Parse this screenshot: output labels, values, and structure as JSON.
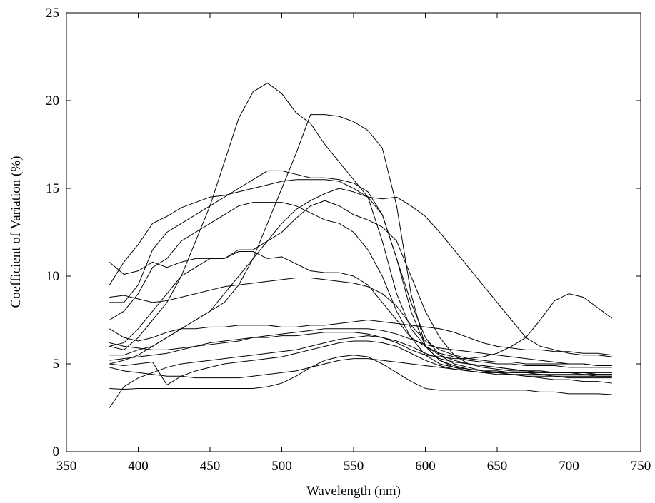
{
  "chart_data": {
    "type": "line",
    "x_label": "Wavelength (nm)",
    "y_label": "Coefficient of Variation (%)",
    "xlim": [
      350,
      750
    ],
    "xticks": [
      350,
      400,
      450,
      500,
      550,
      600,
      650,
      700,
      750
    ],
    "ylim": [
      0,
      25
    ],
    "yticks": [
      0,
      5,
      10,
      15,
      20,
      25
    ],
    "x": [
      380,
      390,
      400,
      410,
      420,
      430,
      440,
      450,
      460,
      470,
      480,
      490,
      500,
      510,
      520,
      530,
      540,
      550,
      560,
      570,
      580,
      590,
      600,
      610,
      620,
      630,
      640,
      650,
      660,
      670,
      680,
      690,
      700,
      710,
      720,
      730
    ],
    "series": [
      {
        "color": "#000000",
        "values": [
          6.0,
          5.8,
          6.5,
          7.5,
          8.5,
          10,
          12,
          14,
          16.5,
          19,
          20.5,
          21,
          20.4,
          19.3,
          18.7,
          17.5,
          16.5,
          15.5,
          14.5,
          12,
          9,
          7,
          6,
          5.5,
          5.2,
          5.0,
          4.9,
          4.8,
          4.7,
          4.6,
          4.6,
          4.5,
          4.5,
          4.5,
          4.4,
          4.4
        ]
      },
      {
        "color": "#000000",
        "values": [
          5.0,
          5.2,
          5.5,
          6,
          6.5,
          7,
          7.5,
          8,
          8.5,
          9.5,
          11,
          13,
          15,
          17,
          19.2,
          19.2,
          19.1,
          18.8,
          18.3,
          17.3,
          14,
          9,
          6,
          5.2,
          4.8,
          4.6,
          4.5,
          4.4,
          4.4,
          4.3,
          4.3,
          4.3,
          4.2,
          4.2,
          4.2,
          4.2
        ]
      },
      {
        "color": "#000000",
        "values": [
          8.5,
          8.5,
          9.5,
          11.5,
          12.5,
          13,
          13.5,
          14,
          14.5,
          15,
          15.5,
          16,
          16,
          15.8,
          15.6,
          15.6,
          15.5,
          15.3,
          14.8,
          13.5,
          11,
          8.5,
          6.5,
          5.5,
          5,
          4.8,
          4.6,
          4.5,
          4.5,
          4.5,
          4.4,
          4.4,
          4.4,
          4.4,
          4.3,
          4.3
        ]
      },
      {
        "color": "#000000",
        "values": [
          9.5,
          10.8,
          11.8,
          13,
          13.4,
          13.9,
          14.2,
          14.5,
          14.6,
          14.8,
          15,
          15.2,
          15.4,
          15.5,
          15.5,
          15.5,
          15.4,
          15,
          14.5,
          14.4,
          14.5,
          14,
          13.4,
          12.5,
          11.5,
          10.5,
          9.5,
          8.5,
          7.5,
          6.5,
          6,
          5.8,
          5.6,
          5.5,
          5.5,
          5.4
        ]
      },
      {
        "color": "#000000",
        "values": [
          6,
          6.2,
          7,
          8,
          9,
          10,
          10.5,
          11,
          11,
          11.5,
          11.5,
          12,
          12.5,
          13.3,
          14,
          14.3,
          14,
          13.5,
          13.2,
          12.8,
          12,
          10,
          8,
          6.5,
          5.5,
          5,
          4.8,
          4.7,
          4.6,
          4.6,
          4.5,
          4.5,
          4.5,
          4.5,
          4.5,
          4.5
        ]
      },
      {
        "color": "#000000",
        "values": [
          7.5,
          8,
          9,
          10.5,
          11,
          12,
          12.5,
          13,
          13.5,
          14,
          14.2,
          14.2,
          14.2,
          14,
          13.6,
          13.2,
          13,
          12.5,
          11.5,
          10,
          8,
          6.5,
          5.5,
          5.0,
          4.8,
          4.7,
          4.6,
          4.6,
          4.5,
          4.5,
          4.5,
          4.5,
          4.5,
          4.5,
          4.5,
          4.5
        ]
      },
      {
        "color": "#000000",
        "values": [
          5.5,
          5.5,
          5.8,
          6,
          6.5,
          7,
          7.5,
          8,
          9,
          10,
          11,
          12,
          13,
          13.8,
          14.3,
          14.7,
          15,
          14.8,
          14.5,
          13.5,
          11,
          8,
          6,
          5.2,
          4.9,
          4.7,
          4.6,
          4.6,
          4.5,
          4.5,
          4.5,
          4.5,
          4.5,
          4.4,
          4.4,
          4.4
        ]
      },
      {
        "color": "#000000",
        "values": [
          5.2,
          5.3,
          5.4,
          5.5,
          5.6,
          5.8,
          6,
          6.2,
          6.3,
          6.4,
          6.5,
          6.5,
          6.6,
          6.6,
          6.7,
          6.8,
          6.8,
          6.8,
          6.7,
          6.5,
          6.2,
          5.8,
          5.5,
          5.4,
          5.3,
          5.3,
          5.4,
          5.6,
          6,
          6.5,
          7.5,
          8.6,
          9.0,
          8.8,
          8.2,
          7.6
        ]
      },
      {
        "color": "#000000",
        "values": [
          10.8,
          10.1,
          10.3,
          10.8,
          10.5,
          10.8,
          11,
          11,
          11,
          11.4,
          11.4,
          11,
          11.1,
          10.7,
          10.3,
          10.2,
          10.2,
          10,
          9.5,
          8.5,
          7.5,
          6.5,
          6,
          5.6,
          5.4,
          5.2,
          5.1,
          5.0,
          5.0,
          4.9,
          4.9,
          4.9,
          4.8,
          4.8,
          4.8,
          4.8
        ]
      },
      {
        "color": "#000000",
        "values": [
          8.8,
          8.9,
          8.7,
          8.5,
          8.6,
          8.8,
          9,
          9.2,
          9.4,
          9.5,
          9.6,
          9.7,
          9.8,
          9.9,
          9.9,
          9.8,
          9.7,
          9.6,
          9.4,
          9,
          8.3,
          7.2,
          6.3,
          5.8,
          5.5,
          5.3,
          5.2,
          5.1,
          5.1,
          5.0,
          5.0,
          5.0,
          5.0,
          5.0,
          4.9,
          4.9
        ]
      },
      {
        "color": "#000000",
        "values": [
          3.6,
          3.55,
          3.6,
          3.6,
          3.6,
          3.6,
          3.6,
          3.6,
          3.6,
          3.6,
          3.6,
          3.7,
          3.9,
          4.3,
          4.8,
          5.2,
          5.4,
          5.5,
          5.4,
          5.0,
          4.5,
          4.0,
          3.6,
          3.5,
          3.5,
          3.5,
          3.5,
          3.5,
          3.5,
          3.5,
          3.4,
          3.4,
          3.3,
          3.3,
          3.3,
          3.25
        ]
      },
      {
        "color": "#000000",
        "values": [
          2.5,
          3.7,
          4.2,
          4.5,
          4.8,
          5,
          5.1,
          5.2,
          5.3,
          5.4,
          5.5,
          5.6,
          5.7,
          5.8,
          6,
          6.2,
          6.4,
          6.5,
          6.6,
          6.5,
          6.3,
          6.0,
          5.6,
          5.3,
          5.1,
          5.0,
          4.9,
          4.8,
          4.7,
          4.6,
          4.6,
          4.5,
          4.5,
          4.5,
          4.4,
          4.4
        ]
      },
      {
        "color": "#000000",
        "values": [
          5.0,
          4.9,
          5,
          5.1,
          3.8,
          4.3,
          4.6,
          4.8,
          5,
          5.1,
          5.2,
          5.3,
          5.4,
          5.6,
          5.8,
          6,
          6.2,
          6.3,
          6.3,
          6.2,
          6,
          5.6,
          5.2,
          4.9,
          4.7,
          4.6,
          4.5,
          4.5,
          4.4,
          4.4,
          4.4,
          4.3,
          4.3,
          4.3,
          4.3,
          4.3
        ]
      },
      {
        "color": "#000000",
        "values": [
          7.0,
          6.5,
          6.3,
          6.5,
          6.8,
          7,
          7,
          7.1,
          7.1,
          7.2,
          7.2,
          7.2,
          7.1,
          7.1,
          7.2,
          7.2,
          7.3,
          7.4,
          7.5,
          7.4,
          7.3,
          7.2,
          7.1,
          7,
          6.8,
          6.5,
          6.2,
          6,
          5.9,
          5.8,
          5.8,
          5.7,
          5.7,
          5.6,
          5.6,
          5.5
        ]
      },
      {
        "color": "#000000",
        "values": [
          4.8,
          4.6,
          4.5,
          4.4,
          4.3,
          4.3,
          4.2,
          4.2,
          4.2,
          4.2,
          4.3,
          4.4,
          4.5,
          4.6,
          4.8,
          5.0,
          5.2,
          5.3,
          5.3,
          5.2,
          5.1,
          5.0,
          4.9,
          4.8,
          4.7,
          4.6,
          4.5,
          4.5,
          4.4,
          4.3,
          4.2,
          4.1,
          4.1,
          4.0,
          4.0,
          3.9
        ]
      },
      {
        "color": "#000000",
        "values": [
          6.2,
          6,
          5.9,
          5.8,
          5.8,
          5.9,
          6,
          6.1,
          6.2,
          6.3,
          6.5,
          6.6,
          6.7,
          6.8,
          6.9,
          7,
          7,
          7,
          7,
          6.9,
          6.7,
          6.4,
          6.1,
          5.9,
          5.8,
          5.7,
          5.6,
          5.5,
          5.4,
          5.3,
          5.2,
          5.1,
          5.0,
          5.0,
          4.9,
          4.9
        ]
      }
    ]
  }
}
